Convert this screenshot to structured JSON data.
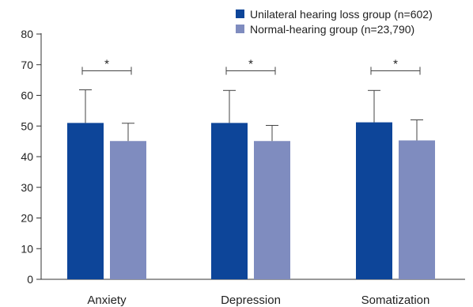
{
  "chart_data": {
    "type": "bar",
    "categories": [
      "Anxiety",
      "Depression",
      "Somatization"
    ],
    "series": [
      {
        "name": "Unilateral hearing loss group (n=602)",
        "color": "#0d4599",
        "values": [
          51.0,
          51.0,
          51.2
        ],
        "error_upper": [
          61.8,
          61.6,
          61.6
        ]
      },
      {
        "name": "Normal-hearing group (n=23,790)",
        "color": "#7f8cbf",
        "values": [
          45.1,
          45.1,
          45.3
        ],
        "error_upper": [
          50.9,
          50.2,
          52.0
        ]
      }
    ],
    "ylim": [
      0,
      80
    ],
    "yticks": [
      "0",
      "10",
      "20",
      "30",
      "40",
      "50",
      "60",
      "70",
      "80"
    ],
    "significance": [
      "*",
      "*",
      "*"
    ],
    "legend_position": "top-right",
    "grid": false
  }
}
